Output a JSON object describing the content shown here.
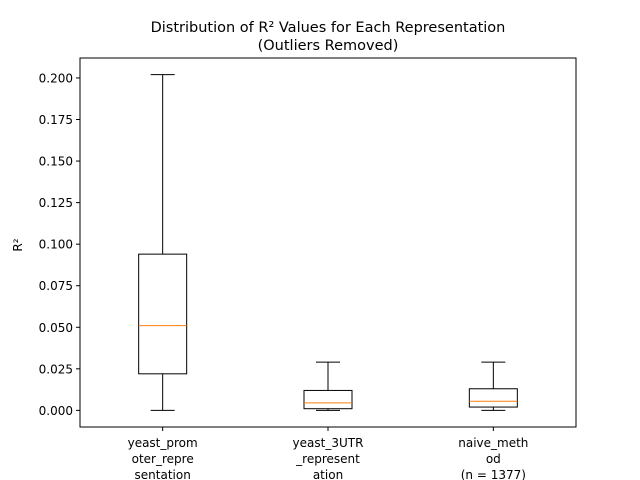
{
  "chart_data": {
    "type": "box",
    "title_lines": [
      "Distribution of R² Values for Each Representation",
      "(Outliers Removed)"
    ],
    "xlabel": "",
    "ylabel": "R²",
    "ylim": [
      -0.01,
      0.212
    ],
    "yticks": [
      "0.000",
      "0.025",
      "0.050",
      "0.075",
      "0.100",
      "0.125",
      "0.150",
      "0.175",
      "0.200"
    ],
    "categories": [
      [
        "yeast_prom",
        "oter_repre",
        "sentation"
      ],
      [
        "yeast_3UTR",
        "_represent",
        "ation"
      ],
      [
        "naive_meth",
        "od",
        "(n = 1377)"
      ]
    ],
    "boxes": [
      {
        "whisker_low": 0.0,
        "q1": 0.022,
        "median": 0.051,
        "q3": 0.094,
        "whisker_high": 0.202
      },
      {
        "whisker_low": 0.0,
        "q1": 0.001,
        "median": 0.0045,
        "q3": 0.012,
        "whisker_high": 0.029
      },
      {
        "whisker_low": 0.0,
        "q1": 0.002,
        "median": 0.0055,
        "q3": 0.013,
        "whisker_high": 0.029
      }
    ],
    "colors": {
      "box": "#000000",
      "median": "#ff7f0e"
    },
    "grid": false,
    "legend": "none"
  }
}
